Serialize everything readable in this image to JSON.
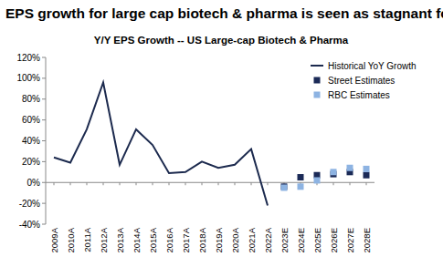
{
  "chart_data": {
    "type": "line",
    "title": "EPS growth for large cap biotech & pharma is seen as stagnant for the coming years",
    "subtitle": "Y/Y EPS Growth -- US Large-cap Biotech & Pharma",
    "categories": [
      "2009A",
      "2010A",
      "2011A",
      "2012A",
      "2013A",
      "2014A",
      "2015A",
      "2016A",
      "2017A",
      "2018A",
      "2019A",
      "2020A",
      "2021A",
      "2022A",
      "2023E",
      "2024E",
      "2025E",
      "2026E",
      "2027E",
      "2028E"
    ],
    "series": [
      {
        "name": "Historical YoY Growth",
        "type": "line",
        "line_style": "solid",
        "color": "#1c2a4e",
        "values": [
          24,
          19,
          51,
          96,
          17,
          51,
          36,
          9,
          10,
          20,
          14,
          17,
          32,
          -22,
          null,
          null,
          null,
          null,
          null,
          null
        ]
      },
      {
        "name": "Street Estimates",
        "type": "scatter",
        "marker": "square",
        "color": "#1b2a57",
        "values": [
          null,
          null,
          null,
          null,
          null,
          null,
          null,
          null,
          null,
          null,
          null,
          null,
          null,
          null,
          -4,
          5,
          7,
          8,
          10,
          7
        ]
      },
      {
        "name": "RBC Estimates",
        "type": "scatter",
        "marker": "square",
        "color": "#8db3e2",
        "values": [
          null,
          null,
          null,
          null,
          null,
          null,
          null,
          null,
          null,
          null,
          null,
          null,
          null,
          null,
          -5,
          -4,
          2,
          10,
          14,
          13
        ]
      }
    ],
    "ylim": [
      -40,
      120
    ],
    "yticks": [
      {
        "value": -40,
        "label": "-40%"
      },
      {
        "value": -20,
        "label": "-20%"
      },
      {
        "value": 0,
        "label": "0%"
      },
      {
        "value": 20,
        "label": "20%"
      },
      {
        "value": 40,
        "label": "40%"
      },
      {
        "value": 60,
        "label": "60%"
      },
      {
        "value": 80,
        "label": "80%"
      },
      {
        "value": 100,
        "label": "100%"
      },
      {
        "value": 120,
        "label": "120%"
      }
    ],
    "grid": false,
    "legend": "top-right"
  }
}
